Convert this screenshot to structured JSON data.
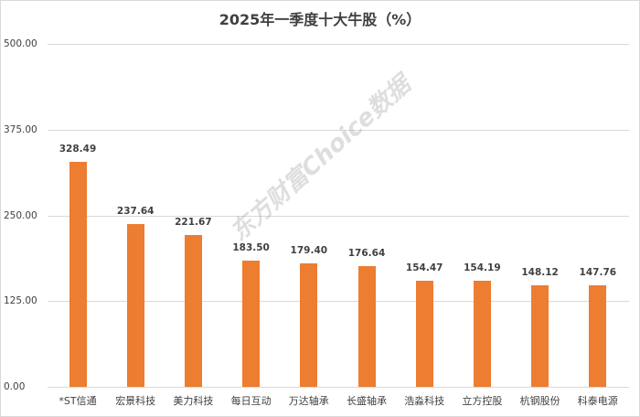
{
  "chart_data": {
    "type": "bar",
    "title": "2025年一季度十大牛股（%）",
    "xlabel": "",
    "ylabel": "",
    "ylim": [
      0,
      500
    ],
    "yticks": [
      "0.00",
      "125.00",
      "250.00",
      "375.00",
      "500.00"
    ],
    "grid": true,
    "legend": "none",
    "categories": [
      "*ST信通",
      "宏景科技",
      "美力科技",
      "每日互动",
      "万达轴承",
      "长盛轴承",
      "浩淼科技",
      "立方控股",
      "杭钢股份",
      "科泰电源"
    ],
    "values": [
      328.49,
      237.64,
      221.67,
      183.5,
      179.4,
      176.64,
      154.47,
      154.19,
      148.12,
      147.76
    ],
    "value_labels": [
      "328.49",
      "237.64",
      "221.67",
      "183.50",
      "179.40",
      "176.64",
      "154.47",
      "154.19",
      "148.12",
      "147.76"
    ],
    "bar_color": "#ed7d31",
    "watermark": "东方财富Choice数据"
  }
}
